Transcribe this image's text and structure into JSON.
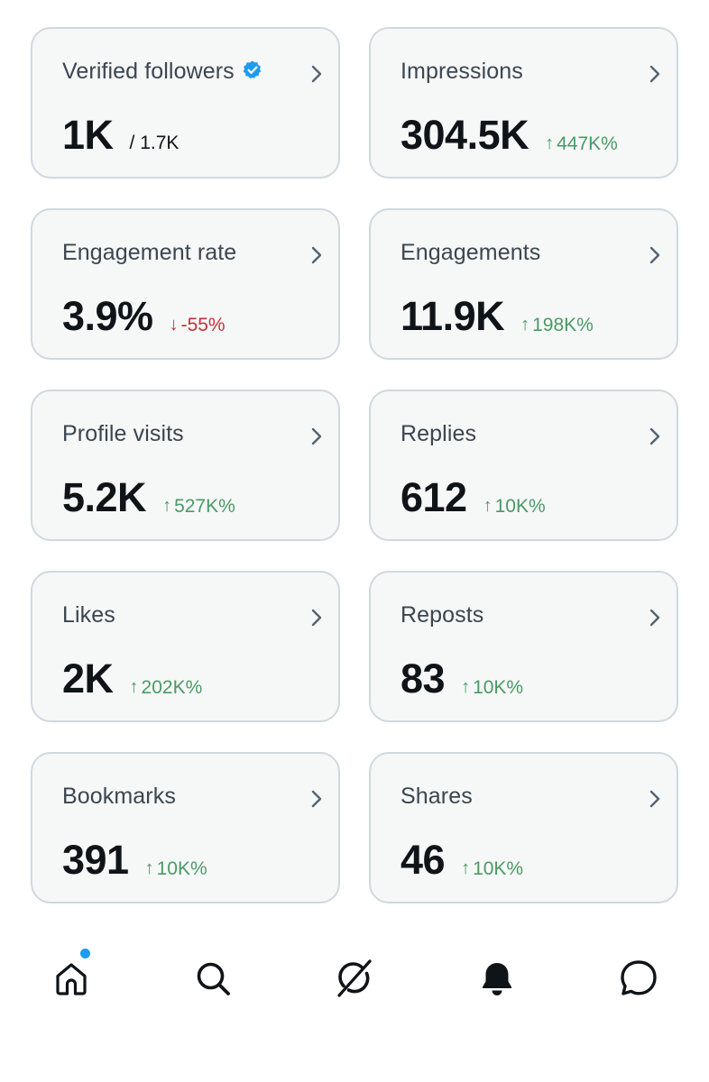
{
  "cards": [
    {
      "label": "Verified followers",
      "value": "1K",
      "sub": "/ 1.7K",
      "change": "",
      "direction": "none",
      "verified": true
    },
    {
      "label": "Impressions",
      "value": "304.5K",
      "sub": "",
      "change": "447K%",
      "direction": "up",
      "verified": false
    },
    {
      "label": "Engagement rate",
      "value": "3.9%",
      "sub": "",
      "change": "-55%",
      "direction": "down",
      "verified": false
    },
    {
      "label": "Engagements",
      "value": "11.9K",
      "sub": "",
      "change": "198K%",
      "direction": "up",
      "verified": false
    },
    {
      "label": "Profile visits",
      "value": "5.2K",
      "sub": "",
      "change": "527K%",
      "direction": "up",
      "verified": false
    },
    {
      "label": "Replies",
      "value": "612",
      "sub": "",
      "change": "10K%",
      "direction": "up",
      "verified": false
    },
    {
      "label": "Likes",
      "value": "2K",
      "sub": "",
      "change": "202K%",
      "direction": "up",
      "verified": false
    },
    {
      "label": "Reposts",
      "value": "83",
      "sub": "",
      "change": "10K%",
      "direction": "up",
      "verified": false
    },
    {
      "label": "Bookmarks",
      "value": "391",
      "sub": "",
      "change": "10K%",
      "direction": "up",
      "verified": false
    },
    {
      "label": "Shares",
      "value": "46",
      "sub": "",
      "change": "10K%",
      "direction": "up",
      "verified": false
    }
  ],
  "arrows": {
    "up": "↑",
    "down": "↓"
  },
  "colors": {
    "card_bg": "#f6f7f7",
    "card_border": "#cfd9de",
    "positive": "#4a9a66",
    "negative": "#c2323a",
    "verified": "#1d9bf0",
    "notification_dot": "#1d9bf0"
  },
  "tabbar": {
    "items": [
      "home-icon",
      "search-icon",
      "grok-icon",
      "notifications-icon",
      "messages-icon"
    ]
  }
}
